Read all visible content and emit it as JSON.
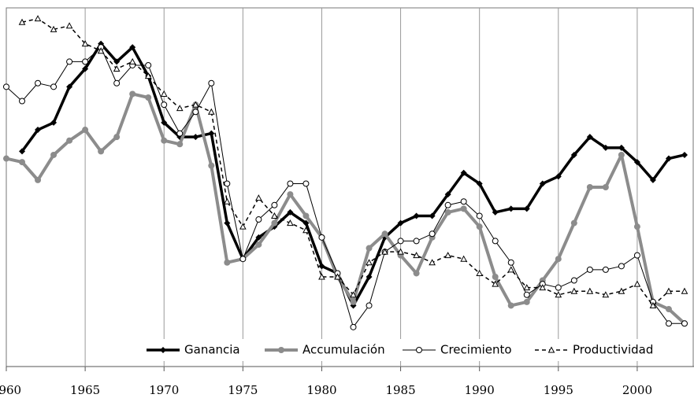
{
  "chart_data": {
    "type": "line",
    "x": [
      1960,
      1961,
      1962,
      1963,
      1964,
      1965,
      1966,
      1967,
      1968,
      1969,
      1970,
      1971,
      1972,
      1973,
      1974,
      1975,
      1976,
      1977,
      1978,
      1979,
      1980,
      1981,
      1982,
      1983,
      1984,
      1985,
      1986,
      1987,
      1988,
      1989,
      1990,
      1991,
      1992,
      1993,
      1994,
      1995,
      1996,
      1997,
      1998,
      1999,
      2000,
      2001,
      2002,
      2003
    ],
    "series": [
      {
        "name": "Ganancia",
        "color": "#000000",
        "marker": "diamond",
        "line_width": 3.5,
        "dashed": false,
        "values": [
          null,
          60,
          66,
          68,
          78,
          83,
          90,
          85,
          89,
          81,
          68,
          64,
          64,
          65,
          40,
          30,
          36,
          39,
          43,
          40,
          28,
          26,
          17,
          25,
          36,
          40,
          42,
          42,
          48,
          54,
          51,
          43,
          44,
          44,
          51,
          53,
          59,
          64,
          61,
          61,
          57,
          52,
          58,
          59
        ]
      },
      {
        "name": "Accumulación",
        "color": "#8c8c8c",
        "marker": "circle",
        "line_width": 4,
        "dashed": false,
        "values": [
          58,
          57,
          52,
          59,
          63,
          66,
          60,
          64,
          76,
          75,
          63,
          62,
          73,
          56,
          29,
          30,
          34,
          40,
          48,
          42,
          36,
          25,
          18,
          33,
          37,
          31,
          26,
          36,
          43,
          44,
          39,
          25,
          17,
          18,
          24,
          30,
          40,
          50,
          50,
          59,
          39,
          18,
          16,
          12
        ]
      },
      {
        "name": "Crecimiento",
        "color": "#000000",
        "marker": "open-circle",
        "line_width": 1,
        "dashed": false,
        "values": [
          78,
          74,
          79,
          78,
          85,
          85,
          89,
          79,
          84,
          84,
          73,
          65,
          71,
          79,
          51,
          30,
          41,
          45,
          51,
          51,
          36,
          26,
          11,
          17,
          32,
          35,
          35,
          37,
          45,
          46,
          42,
          35,
          29,
          20,
          23,
          22,
          24,
          27,
          27,
          28,
          31,
          18,
          12,
          12
        ]
      },
      {
        "name": "Productividad",
        "color": "#000000",
        "marker": "triangle",
        "line_width": 1.5,
        "dashed": true,
        "values": [
          null,
          96,
          97,
          94,
          95,
          90,
          88,
          83,
          85,
          81,
          76,
          72,
          73,
          71,
          46,
          39,
          47,
          42,
          40,
          38,
          25,
          25,
          20,
          29,
          32,
          32,
          31,
          29,
          31,
          30,
          26,
          23,
          27,
          22,
          22,
          20,
          21,
          21,
          20,
          21,
          23,
          17,
          21,
          21
        ]
      }
    ],
    "xlim": [
      1960,
      2003.6
    ],
    "xticks": [
      1960,
      1965,
      1970,
      1975,
      1980,
      1985,
      1990,
      1995,
      2000
    ],
    "ylim": [
      0,
      100
    ],
    "grid": "x",
    "legend": "bottom"
  }
}
